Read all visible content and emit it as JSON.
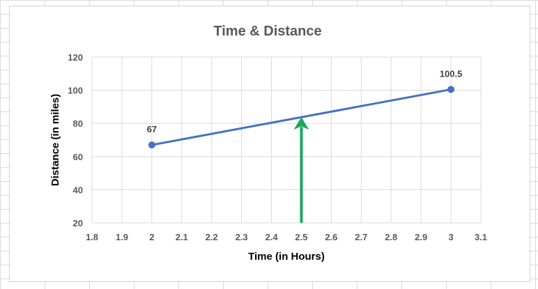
{
  "chart_data": {
    "type": "scatter",
    "title": "Time & Distance",
    "xlabel": "Time (in Hours)",
    "ylabel": "Distance (in miles)",
    "xlim": [
      1.8,
      3.1
    ],
    "ylim": [
      20,
      120
    ],
    "x_ticks": [
      "1.8",
      "1.9",
      "2",
      "2.1",
      "2.2",
      "2.3",
      "2.4",
      "2.5",
      "2.6",
      "2.7",
      "2.8",
      "2.9",
      "3",
      "3.1"
    ],
    "y_ticks": [
      "20",
      "40",
      "60",
      "80",
      "100",
      "120"
    ],
    "grid": true,
    "series": [
      {
        "points": [
          {
            "x": 2,
            "y": 67,
            "label": "67"
          },
          {
            "x": 3,
            "y": 100.5,
            "label": "100.5"
          }
        ],
        "color": "#4472c4",
        "line": true,
        "markers": true
      }
    ],
    "annotations": [
      {
        "type": "arrow",
        "x": 2.5,
        "from_y": 20,
        "to_y": 83.75,
        "color": "#1aa85a"
      }
    ]
  }
}
